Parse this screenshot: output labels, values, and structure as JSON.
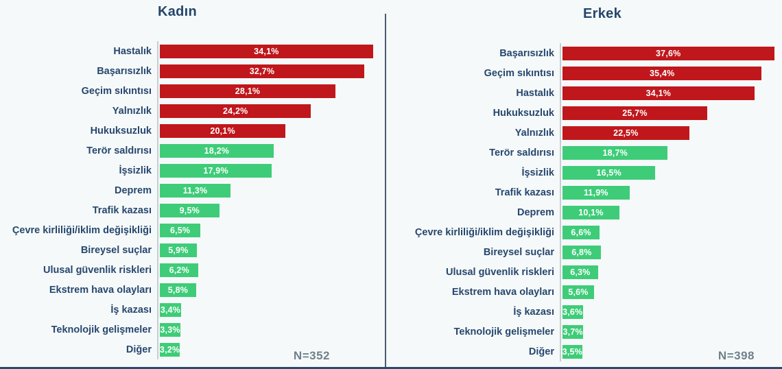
{
  "colors": {
    "red": "#C0171C",
    "green": "#3ECC78",
    "label_navy": "#27476E",
    "value_text": "#FFFFFF",
    "n_text": "#70808A",
    "axis_line": "#C8CDD2",
    "divider": "#4A5A72",
    "background": "#F5F9F9"
  },
  "chart_data": [
    {
      "type": "bar",
      "orientation": "horizontal",
      "title": "Kadın",
      "n_label": "N=352",
      "xlim": [
        0,
        36
      ],
      "grid": false,
      "legend": false,
      "categories": [
        "Hastalık",
        "Başarısızlık",
        "Geçim sıkıntısı",
        "Yalnızlık",
        "Hukuksuzluk",
        "Terör saldırısı",
        "İşsizlik",
        "Deprem",
        "Trafik kazası",
        "Çevre kirliliği/iklim değişikliği",
        "Bireysel suçlar",
        "Ulusal güvenlik riskleri",
        "Ekstrem hava olayları",
        "İş kazası",
        "Teknolojik gelişmeler",
        "Diğer"
      ],
      "values": [
        34.1,
        32.7,
        28.1,
        24.2,
        20.1,
        18.2,
        17.9,
        11.3,
        9.5,
        6.5,
        5.9,
        6.2,
        5.8,
        3.4,
        3.3,
        3.2
      ],
      "value_labels": [
        "34,1%",
        "32,7%",
        "28,1%",
        "24,2%",
        "20,1%",
        "18,2%",
        "17,9%",
        "11,3%",
        "9,5%",
        "6,5%",
        "5,9%",
        "6,2%",
        "5,8%",
        "3,4%",
        "3,3%",
        "3,2%"
      ],
      "bar_colors": [
        "red",
        "red",
        "red",
        "red",
        "red",
        "green",
        "green",
        "green",
        "green",
        "green",
        "green",
        "green",
        "green",
        "green",
        "green",
        "green"
      ]
    },
    {
      "type": "bar",
      "orientation": "horizontal",
      "title": "Erkek",
      "n_label": "N=398",
      "xlim": [
        0,
        39
      ],
      "grid": false,
      "legend": false,
      "categories": [
        "Başarısızlık",
        "Geçim sıkıntısı",
        "Hastalık",
        "Hukuksuzluk",
        "Yalnızlık",
        "Terör saldırısı",
        "İşsizlik",
        "Trafik kazası",
        "Deprem",
        "Çevre kirliliği/iklim değişikliği",
        "Bireysel suçlar",
        "Ulusal güvenlik riskleri",
        "Ekstrem hava olayları",
        "İş kazası",
        "Teknolojik gelişmeler",
        "Diğer"
      ],
      "values": [
        37.6,
        35.4,
        34.1,
        25.7,
        22.5,
        18.7,
        16.5,
        11.9,
        10.1,
        6.6,
        6.8,
        6.3,
        5.6,
        3.6,
        3.7,
        3.5
      ],
      "value_labels": [
        "37,6%",
        "35,4%",
        "34,1%",
        "25,7%",
        "22,5%",
        "18,7%",
        "16,5%",
        "11,9%",
        "10,1%",
        "6,6%",
        "6,8%",
        "6,3%",
        "5,6%",
        "3,6%",
        "3,7%",
        "3,5%"
      ],
      "bar_colors": [
        "red",
        "red",
        "red",
        "red",
        "red",
        "green",
        "green",
        "green",
        "green",
        "green",
        "green",
        "green",
        "green",
        "green",
        "green",
        "green"
      ]
    }
  ]
}
